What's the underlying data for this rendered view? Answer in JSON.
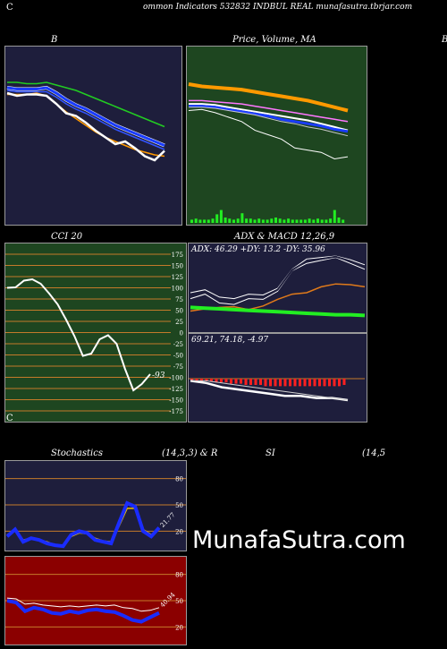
{
  "header": {
    "left_fragment": "C",
    "title": "ommon  Indicators 532832  INDBUL  REAL  munafasutra.tbrjar.com"
  },
  "panels": {
    "bb_title": "B",
    "price_title": "Price,  Volume,  MA",
    "right_fragment": "B",
    "cci_title": "CCI 20",
    "adx_title": "ADX  & MACD 12,26,9",
    "adx_values": "ADX: 46.29  +DY: 13.2  -DY: 35.96",
    "macd_values": "69.21,  74.18,  -4.97",
    "stoch_title": "Stochastics",
    "stoch_params": "(14,3,3) & R",
    "rsi_title": "SI",
    "rsi_params": "(14,5",
    "left_fragment_2": "C"
  },
  "watermark": "MunafaSutra.com",
  "colors": {
    "bb_bg": "#1e1e3c",
    "price_bg": "#1e4620",
    "cci_bg": "#1e4620",
    "adx_bg": "#1e1e3c",
    "stoch_bg": "#1e1e3c",
    "rsi_bg": "#8b0000",
    "grid_orange": "#c47a2a",
    "blue": "#1a3cff",
    "green": "#22cc22",
    "orange": "#ff9900",
    "white": "#ffffff"
  },
  "chart_data": [
    {
      "type": "line",
      "title": "B",
      "series": [
        {
          "values": [
            100,
            100,
            99,
            99,
            100,
            98,
            96,
            94,
            91,
            88,
            85,
            82,
            79,
            76,
            73,
            70,
            67
          ]
        },
        {
          "values": [
            96,
            95,
            95,
            95,
            96,
            92,
            87,
            83,
            80,
            76,
            72,
            68,
            65,
            62,
            59,
            56,
            53
          ]
        },
        {
          "values": [
            94,
            93,
            93,
            93,
            93,
            89,
            84,
            80,
            77,
            73,
            69,
            65,
            62,
            59,
            56,
            53,
            50
          ]
        },
        {
          "values": [
            91,
            91,
            91,
            92,
            90,
            84,
            78,
            73,
            68,
            63,
            59,
            56,
            53,
            50,
            48,
            46,
            45
          ]
        },
        {
          "values": [
            92,
            90,
            91,
            91,
            90,
            84,
            77,
            75,
            70,
            64,
            59,
            54,
            56,
            51,
            45,
            42,
            49
          ]
        }
      ]
    },
    {
      "type": "line",
      "title": "Price,  Volume,  MA",
      "series": [
        {
          "values": [
            100,
            98,
            97,
            96,
            95,
            93,
            91,
            89,
            87,
            85,
            82,
            79,
            76
          ]
        },
        {
          "values": [
            85,
            85,
            84,
            83,
            82,
            80,
            78,
            76,
            74,
            72,
            70,
            68,
            66
          ]
        },
        {
          "values": [
            82,
            82,
            81,
            79,
            77,
            75,
            73,
            71,
            69,
            67,
            64,
            61,
            58
          ]
        },
        {
          "values": [
            80,
            80,
            79,
            77,
            75,
            73,
            71,
            68,
            66,
            64,
            62,
            59,
            57
          ]
        },
        {
          "values": [
            79,
            79,
            78,
            76,
            74,
            72,
            69,
            66,
            64,
            61,
            59,
            56,
            53
          ]
        },
        {
          "values": [
            76,
            77,
            74,
            70,
            66,
            58,
            54,
            50,
            42,
            40,
            38,
            32,
            34
          ]
        }
      ],
      "volume": [
        3,
        4,
        3,
        3,
        3,
        4,
        8,
        12,
        5,
        4,
        3,
        4,
        9,
        4,
        4,
        3,
        4,
        3,
        3,
        4,
        5,
        4,
        3,
        4,
        3,
        3,
        3,
        3,
        4,
        3,
        4,
        3,
        3,
        4,
        12,
        5,
        3
      ]
    },
    {
      "type": "line",
      "title": "CCI 20",
      "ylim": [
        -175,
        175
      ],
      "yticks": [
        175,
        150,
        125,
        100,
        75,
        50,
        25,
        0,
        -25,
        -50,
        -75,
        -100,
        -125,
        -150,
        -175
      ],
      "ytick_labels": [
        "175",
        "150",
        "125",
        "100",
        "75",
        "50",
        "25",
        "0",
        "-25",
        "-50",
        "-75",
        "-100",
        "-125",
        "-150",
        "-175"
      ],
      "series": [
        {
          "values": [
            100,
            101,
            116,
            119,
            109,
            87,
            63,
            29,
            -8,
            -52,
            -47,
            -15,
            -6,
            -25,
            -81,
            -129,
            -115,
            -93
          ]
        }
      ],
      "last_label": "-93"
    },
    {
      "type": "line",
      "title": "ADX  & MACD 12,26,9",
      "series": [
        {
          "values": [
            50,
            54,
            44,
            42,
            48,
            47,
            56,
            82,
            96,
            98,
            100,
            95,
            88
          ]
        },
        {
          "values": [
            42,
            48,
            36,
            34,
            42,
            41,
            52,
            80,
            90,
            94,
            98,
            90,
            82
          ]
        },
        {
          "values": [
            45,
            51,
            40,
            38,
            45,
            44,
            54,
            81,
            93,
            96,
            99,
            93,
            85
          ]
        },
        {
          "values": [
            25,
            28,
            30,
            31,
            27,
            32,
            41,
            48,
            50,
            58,
            62,
            61,
            58
          ]
        },
        {
          "values": [
            30,
            29,
            28,
            27,
            26,
            25,
            24,
            23,
            22,
            21,
            20,
            20,
            19
          ]
        }
      ]
    },
    {
      "type": "bar",
      "title": "69.21,  74.18,  -4.97",
      "hist": [
        -2,
        -2,
        -2,
        -2,
        -2,
        -3,
        -3,
        -3,
        -4,
        -4,
        -4,
        -5,
        -5,
        -5,
        -5,
        -6,
        -6,
        -6,
        -6,
        -6,
        -6,
        -6,
        -6,
        -6,
        -6,
        -6,
        -6,
        -6,
        -6,
        -6,
        -6,
        -5
      ],
      "series": [
        {
          "values": [
            74,
            73,
            71,
            70,
            69,
            68,
            67,
            67,
            66,
            66,
            65
          ]
        },
        {
          "values": [
            74,
            74,
            73,
            72,
            71,
            70,
            69,
            68,
            67,
            66,
            65
          ]
        }
      ]
    },
    {
      "type": "line",
      "title": "Stochastics",
      "ylim": [
        0,
        100
      ],
      "yticks": [
        80,
        50,
        20
      ],
      "series": [
        {
          "values": [
            14,
            22,
            8,
            12,
            10,
            6,
            4,
            3,
            16,
            20,
            18,
            10,
            8,
            6,
            30,
            52,
            48,
            20,
            14,
            24
          ]
        },
        {
          "values": [
            16,
            20,
            10,
            12,
            10,
            8,
            4,
            4,
            14,
            18,
            17,
            12,
            9,
            8,
            26,
            46,
            46,
            22,
            16,
            22
          ]
        }
      ],
      "last_label": "21.77"
    },
    {
      "type": "line",
      "title": "SI",
      "ylim": [
        0,
        100
      ],
      "yticks": [
        80,
        50,
        20
      ],
      "series": [
        {
          "values": [
            53,
            52,
            46,
            47,
            45,
            44,
            43,
            44,
            43,
            44,
            45,
            44,
            45,
            42,
            41,
            38,
            39,
            42
          ]
        },
        {
          "values": [
            50,
            48,
            38,
            42,
            40,
            36,
            35,
            38,
            36,
            39,
            40,
            38,
            37,
            33,
            28,
            26,
            31,
            36
          ]
        }
      ],
      "last_label": "40.94"
    }
  ]
}
